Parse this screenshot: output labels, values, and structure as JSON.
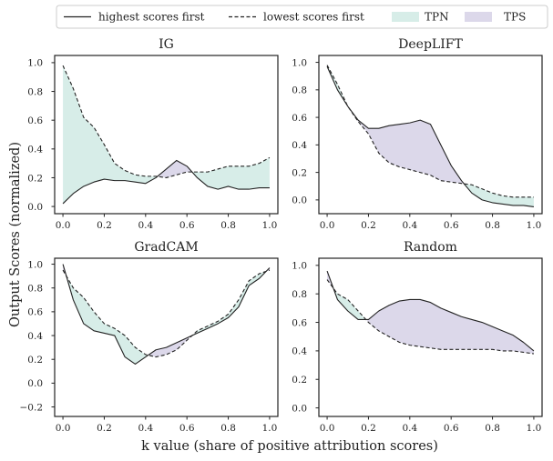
{
  "chart_data": {
    "type": "line",
    "ylabel": "Output Scores (normalized)",
    "xlabel": "k value (share of positive attribution scores)",
    "legend": {
      "placement": "top",
      "items": [
        {
          "label": "highest scores first",
          "kind": "line-solid"
        },
        {
          "label": "lowest scores first",
          "kind": "line-dashed"
        },
        {
          "label": "TPN",
          "kind": "patch",
          "color": "#d7ede8"
        },
        {
          "label": "TPS",
          "kind": "patch",
          "color": "#dcd8ea"
        }
      ]
    },
    "colors": {
      "line": "#222222",
      "tpn_fill": "#d7ede8",
      "tps_fill": "#dcd8ea",
      "frame": "#222222"
    },
    "panels": [
      {
        "title": "IG",
        "xlim": [
          -0.04,
          1.04
        ],
        "ylim": [
          -0.05,
          1.05
        ],
        "xticks": [
          0.0,
          0.2,
          0.4,
          0.6,
          0.8,
          1.0
        ],
        "xtick_labels": [
          "0.0",
          "0.2",
          "0.4",
          "0.6",
          "0.8",
          "1.0"
        ],
        "yticks": [
          0.0,
          0.2,
          0.4,
          0.6,
          0.8,
          1.0
        ],
        "ytick_labels": [
          "0.0",
          "0.2",
          "0.4",
          "0.6",
          "0.8",
          "1.0"
        ],
        "x": [
          0.0,
          0.05,
          0.1,
          0.15,
          0.2,
          0.25,
          0.3,
          0.35,
          0.4,
          0.45,
          0.5,
          0.55,
          0.6,
          0.65,
          0.7,
          0.75,
          0.8,
          0.85,
          0.9,
          0.95,
          1.0
        ],
        "series": [
          {
            "name": "highest scores first",
            "style": "solid",
            "values": [
              0.02,
              0.09,
              0.14,
              0.17,
              0.19,
              0.18,
              0.18,
              0.17,
              0.16,
              0.2,
              0.26,
              0.32,
              0.28,
              0.2,
              0.14,
              0.12,
              0.14,
              0.12,
              0.12,
              0.13,
              0.13
            ]
          },
          {
            "name": "lowest scores first",
            "style": "dashed",
            "values": [
              0.98,
              0.82,
              0.62,
              0.55,
              0.43,
              0.3,
              0.25,
              0.22,
              0.21,
              0.21,
              0.2,
              0.22,
              0.24,
              0.24,
              0.24,
              0.26,
              0.28,
              0.28,
              0.28,
              0.3,
              0.34
            ]
          }
        ]
      },
      {
        "title": "DeepLIFT",
        "xlim": [
          -0.04,
          1.04
        ],
        "ylim": [
          -0.1,
          1.05
        ],
        "xticks": [
          0.0,
          0.2,
          0.4,
          0.6,
          0.8,
          1.0
        ],
        "xtick_labels": [
          "0.0",
          "0.2",
          "0.4",
          "0.6",
          "0.8",
          "1.0"
        ],
        "yticks": [
          0.0,
          0.2,
          0.4,
          0.6,
          0.8,
          1.0
        ],
        "ytick_labels": [
          "0.0",
          "0.2",
          "0.4",
          "0.6",
          "0.8",
          "1.0"
        ],
        "x": [
          0.0,
          0.05,
          0.1,
          0.15,
          0.2,
          0.25,
          0.3,
          0.35,
          0.4,
          0.45,
          0.5,
          0.55,
          0.6,
          0.65,
          0.7,
          0.75,
          0.8,
          0.85,
          0.9,
          0.95,
          1.0
        ],
        "series": [
          {
            "name": "highest scores first",
            "style": "solid",
            "values": [
              0.97,
              0.8,
              0.68,
              0.58,
              0.52,
              0.52,
              0.54,
              0.55,
              0.56,
              0.58,
              0.55,
              0.4,
              0.25,
              0.14,
              0.05,
              0.0,
              -0.02,
              -0.03,
              -0.04,
              -0.04,
              -0.05
            ]
          },
          {
            "name": "lowest scores first",
            "style": "dashed",
            "values": [
              0.98,
              0.84,
              0.68,
              0.57,
              0.48,
              0.34,
              0.27,
              0.24,
              0.22,
              0.2,
              0.18,
              0.14,
              0.13,
              0.12,
              0.11,
              0.08,
              0.05,
              0.03,
              0.02,
              0.02,
              0.02
            ]
          }
        ]
      },
      {
        "title": "GradCAM",
        "xlim": [
          -0.04,
          1.04
        ],
        "ylim": [
          -0.28,
          1.05
        ],
        "xticks": [
          0.0,
          0.2,
          0.4,
          0.6,
          0.8,
          1.0
        ],
        "xtick_labels": [
          "0.0",
          "0.2",
          "0.4",
          "0.6",
          "0.8",
          "1.0"
        ],
        "yticks": [
          -0.2,
          0.0,
          0.2,
          0.4,
          0.6,
          0.8,
          1.0
        ],
        "ytick_labels": [
          "−0.2",
          "0.0",
          "0.2",
          "0.4",
          "0.6",
          "0.8",
          "1.0"
        ],
        "x": [
          0.0,
          0.05,
          0.1,
          0.15,
          0.2,
          0.25,
          0.3,
          0.35,
          0.4,
          0.45,
          0.5,
          0.55,
          0.6,
          0.65,
          0.7,
          0.75,
          0.8,
          0.85,
          0.9,
          0.95,
          1.0
        ],
        "series": [
          {
            "name": "highest scores first",
            "style": "solid",
            "values": [
              1.0,
              0.7,
              0.5,
              0.44,
              0.42,
              0.4,
              0.22,
              0.16,
              0.22,
              0.28,
              0.3,
              0.34,
              0.38,
              0.42,
              0.46,
              0.5,
              0.55,
              0.64,
              0.82,
              0.88,
              0.97
            ]
          },
          {
            "name": "lowest scores first",
            "style": "dashed",
            "values": [
              0.95,
              0.8,
              0.72,
              0.6,
              0.5,
              0.46,
              0.4,
              0.3,
              0.24,
              0.22,
              0.24,
              0.28,
              0.36,
              0.44,
              0.48,
              0.52,
              0.58,
              0.7,
              0.86,
              0.92,
              0.95
            ]
          }
        ]
      },
      {
        "title": "Random",
        "xlim": [
          -0.04,
          1.04
        ],
        "ylim": [
          -0.06,
          1.05
        ],
        "xticks": [
          0.0,
          0.2,
          0.4,
          0.6,
          0.8,
          1.0
        ],
        "xtick_labels": [
          "0.0",
          "0.2",
          "0.4",
          "0.6",
          "0.8",
          "1.0"
        ],
        "yticks": [
          0.0,
          0.2,
          0.4,
          0.6,
          0.8,
          1.0
        ],
        "ytick_labels": [
          "0.0",
          "0.2",
          "0.4",
          "0.6",
          "0.8",
          "1.0"
        ],
        "x": [
          0.0,
          0.05,
          0.1,
          0.15,
          0.2,
          0.25,
          0.3,
          0.35,
          0.4,
          0.45,
          0.5,
          0.55,
          0.6,
          0.65,
          0.7,
          0.75,
          0.8,
          0.85,
          0.9,
          0.95,
          1.0
        ],
        "series": [
          {
            "name": "highest scores first",
            "style": "solid",
            "values": [
              0.96,
              0.76,
              0.68,
              0.62,
              0.62,
              0.68,
              0.72,
              0.75,
              0.76,
              0.76,
              0.74,
              0.7,
              0.67,
              0.64,
              0.62,
              0.6,
              0.57,
              0.54,
              0.51,
              0.46,
              0.4
            ]
          },
          {
            "name": "lowest scores first",
            "style": "dashed",
            "values": [
              0.9,
              0.8,
              0.76,
              0.68,
              0.6,
              0.54,
              0.5,
              0.46,
              0.44,
              0.43,
              0.42,
              0.41,
              0.41,
              0.41,
              0.41,
              0.41,
              0.41,
              0.4,
              0.4,
              0.39,
              0.38
            ]
          }
        ]
      }
    ]
  }
}
